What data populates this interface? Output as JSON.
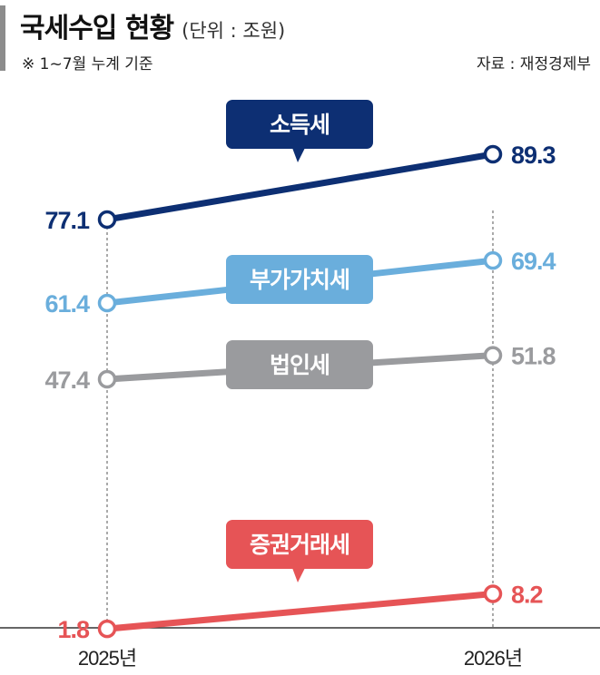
{
  "header": {
    "title": "국세수입 현황",
    "unit": "(단위 : 조원)",
    "note": "※ 1~7월 누계 기준",
    "source": "자료 : 재정경제부"
  },
  "chart_data": {
    "type": "line",
    "title": "국세수입 현황",
    "categories": [
      "2025년",
      "2026년"
    ],
    "ylabel": "",
    "unit": "조원",
    "series": [
      {
        "name": "소득세",
        "values": [
          77.1,
          89.3
        ],
        "color": "#0d2f73"
      },
      {
        "name": "부가가치세",
        "values": [
          61.4,
          69.4
        ],
        "color": "#6aaedc"
      },
      {
        "name": "법인세",
        "values": [
          47.4,
          51.8
        ],
        "color": "#9a9b9e"
      },
      {
        "name": "증권거래세",
        "values": [
          1.8,
          8.2
        ],
        "color": "#e65456"
      }
    ],
    "grid": false,
    "legend": "inline labels"
  }
}
